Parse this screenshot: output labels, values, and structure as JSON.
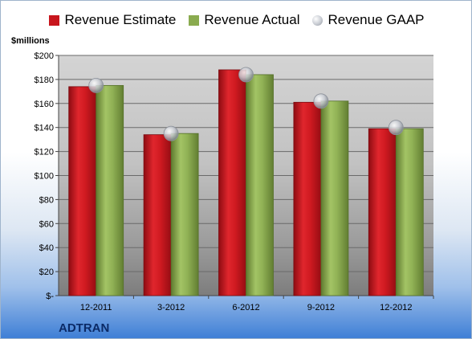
{
  "chart_data": {
    "type": "bar",
    "title": "",
    "ylabel": "$millions",
    "xlabel": "",
    "company": "ADTRAN",
    "ylim": [
      0,
      200
    ],
    "ytick_step": 20,
    "ytick_labels": [
      "$-",
      "$20",
      "$40",
      "$60",
      "$80",
      "$100",
      "$120",
      "$140",
      "$160",
      "$180",
      "$200"
    ],
    "categories": [
      "12-2011",
      "3-2012",
      "6-2012",
      "9-2012",
      "12-2012"
    ],
    "grid": true,
    "legend_position": "top",
    "series": [
      {
        "name": "Revenue Estimate",
        "kind": "bar",
        "color": "#c8161d",
        "values": [
          174,
          134,
          188,
          161,
          139
        ]
      },
      {
        "name": "Revenue Actual",
        "kind": "bar",
        "color": "#8aab4f",
        "values": [
          175,
          135,
          184,
          162,
          139
        ]
      },
      {
        "name": "Revenue GAAP",
        "kind": "marker",
        "color": "#b8bcc4",
        "values": [
          175,
          135,
          184,
          162,
          140
        ]
      }
    ]
  }
}
